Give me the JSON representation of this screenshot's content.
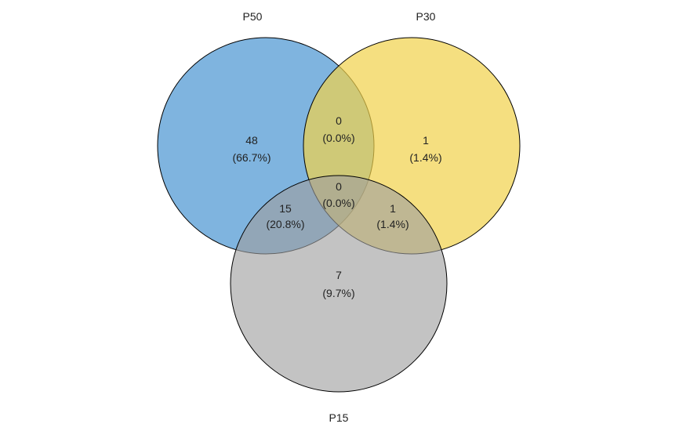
{
  "sets": [
    {
      "key": "p50",
      "label": "P50",
      "color": "#3a8cce",
      "opacity": 0.65
    },
    {
      "key": "p30",
      "label": "P30",
      "color": "#f1d14a",
      "opacity": 0.7
    },
    {
      "key": "p15",
      "label": "P15",
      "color": "#9e9e9e",
      "opacity": 0.62
    }
  ],
  "regions": [
    {
      "key": "p50_only",
      "sets": [
        "P50"
      ],
      "count": "48",
      "percent": "(66.7%)"
    },
    {
      "key": "p30_only",
      "sets": [
        "P30"
      ],
      "count": "1",
      "percent": "(1.4%)"
    },
    {
      "key": "p15_only",
      "sets": [
        "P15"
      ],
      "count": "7",
      "percent": "(9.7%)"
    },
    {
      "key": "p50_p30",
      "sets": [
        "P50",
        "P30"
      ],
      "count": "0",
      "percent": "(0.0%)"
    },
    {
      "key": "p50_p15",
      "sets": [
        "P50",
        "P15"
      ],
      "count": "15",
      "percent": "(20.8%)"
    },
    {
      "key": "p30_p15",
      "sets": [
        "P30",
        "P15"
      ],
      "count": "1",
      "percent": "(1.4%)"
    },
    {
      "key": "all",
      "sets": [
        "P50",
        "P30",
        "P15"
      ],
      "count": "0",
      "percent": "(0.0%)"
    }
  ]
}
